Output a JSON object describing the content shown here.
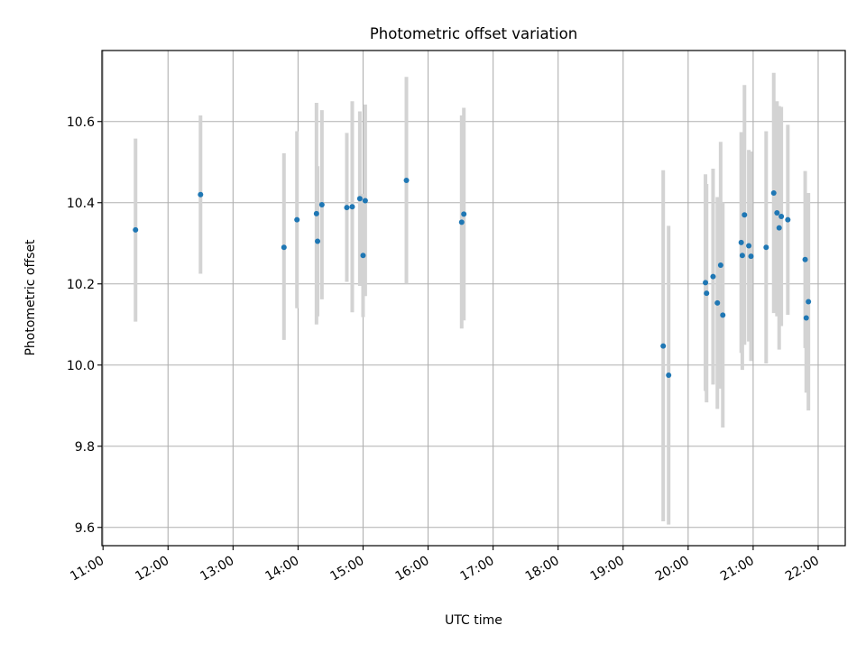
{
  "chart_data": {
    "type": "scatter",
    "title": "Photometric offset variation",
    "xlabel": "UTC time",
    "ylabel": "Photometric offset",
    "x_tick_labels": [
      "11:00",
      "12:00",
      "13:00",
      "14:00",
      "15:00",
      "16:00",
      "17:00",
      "18:00",
      "19:00",
      "20:00",
      "21:00",
      "22:00"
    ],
    "y_tick_labels": [
      "9.6",
      "9.8",
      "10.0",
      "10.2",
      "10.4",
      "10.6"
    ],
    "xlim": [
      "10:59",
      "22:25"
    ],
    "ylim": [
      9.555,
      10.775
    ],
    "grid": true,
    "marker_color": "#1f77b4",
    "errorbar_color": "#d3d3d3",
    "series": [
      {
        "points": [
          {
            "x": "11:30",
            "y": 10.333,
            "ylo": 10.107,
            "yhi": 10.558
          },
          {
            "x": "12:30",
            "y": 10.42,
            "ylo": 10.225,
            "yhi": 10.615
          },
          {
            "x": "13:47",
            "y": 10.29,
            "ylo": 10.062,
            "yhi": 10.522
          },
          {
            "x": "13:59",
            "y": 10.358,
            "ylo": 10.14,
            "yhi": 10.576
          },
          {
            "x": "14:17",
            "y": 10.373,
            "ylo": 10.1,
            "yhi": 10.646
          },
          {
            "x": "14:18",
            "y": 10.305,
            "ylo": 10.12,
            "yhi": 10.49
          },
          {
            "x": "14:22",
            "y": 10.395,
            "ylo": 10.162,
            "yhi": 10.628
          },
          {
            "x": "14:45",
            "y": 10.388,
            "ylo": 10.205,
            "yhi": 10.572
          },
          {
            "x": "14:50",
            "y": 10.39,
            "ylo": 10.13,
            "yhi": 10.65
          },
          {
            "x": "14:57",
            "y": 10.41,
            "ylo": 10.195,
            "yhi": 10.625
          },
          {
            "x": "15:00",
            "y": 10.27,
            "ylo": 10.118,
            "yhi": 10.422
          },
          {
            "x": "15:02",
            "y": 10.405,
            "ylo": 10.17,
            "yhi": 10.642
          },
          {
            "x": "15:40",
            "y": 10.455,
            "ylo": 10.2,
            "yhi": 10.71
          },
          {
            "x": "16:31",
            "y": 10.352,
            "ylo": 10.09,
            "yhi": 10.615
          },
          {
            "x": "16:33",
            "y": 10.372,
            "ylo": 10.11,
            "yhi": 10.634
          },
          {
            "x": "19:37",
            "y": 10.047,
            "ylo": 9.615,
            "yhi": 10.48
          },
          {
            "x": "19:42",
            "y": 9.975,
            "ylo": 9.607,
            "yhi": 10.343
          },
          {
            "x": "20:16",
            "y": 10.203,
            "ylo": 9.936,
            "yhi": 10.47
          },
          {
            "x": "20:17",
            "y": 10.177,
            "ylo": 9.908,
            "yhi": 10.446
          },
          {
            "x": "20:23",
            "y": 10.218,
            "ylo": 9.952,
            "yhi": 10.484
          },
          {
            "x": "20:27",
            "y": 10.153,
            "ylo": 9.892,
            "yhi": 10.414
          },
          {
            "x": "20:30",
            "y": 10.246,
            "ylo": 9.942,
            "yhi": 10.55
          },
          {
            "x": "20:32",
            "y": 10.123,
            "ylo": 9.846,
            "yhi": 10.4
          },
          {
            "x": "20:49",
            "y": 10.302,
            "ylo": 10.03,
            "yhi": 10.574
          },
          {
            "x": "20:50",
            "y": 10.27,
            "ylo": 9.988,
            "yhi": 10.552
          },
          {
            "x": "20:52",
            "y": 10.37,
            "ylo": 10.05,
            "yhi": 10.69
          },
          {
            "x": "20:56",
            "y": 10.294,
            "ylo": 10.058,
            "yhi": 10.53
          },
          {
            "x": "20:58",
            "y": 10.268,
            "ylo": 10.01,
            "yhi": 10.526
          },
          {
            "x": "21:12",
            "y": 10.29,
            "ylo": 10.004,
            "yhi": 10.576
          },
          {
            "x": "21:19",
            "y": 10.424,
            "ylo": 10.128,
            "yhi": 10.72
          },
          {
            "x": "21:22",
            "y": 10.375,
            "ylo": 10.12,
            "yhi": 10.65
          },
          {
            "x": "21:24",
            "y": 10.338,
            "ylo": 10.038,
            "yhi": 10.638
          },
          {
            "x": "21:26",
            "y": 10.366,
            "ylo": 10.096,
            "yhi": 10.636
          },
          {
            "x": "21:32",
            "y": 10.358,
            "ylo": 10.124,
            "yhi": 10.592
          },
          {
            "x": "21:48",
            "y": 10.26,
            "ylo": 10.042,
            "yhi": 10.478
          },
          {
            "x": "21:49",
            "y": 10.116,
            "ylo": 9.932,
            "yhi": 10.3
          },
          {
            "x": "21:51",
            "y": 10.156,
            "ylo": 9.888,
            "yhi": 10.424
          }
        ]
      }
    ]
  }
}
